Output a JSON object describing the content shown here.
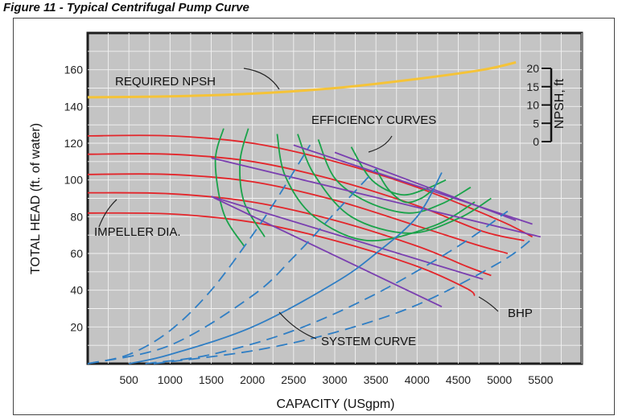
{
  "figure_title": "Figure 11 - Typical Centrifugal Pump Curve",
  "colors": {
    "plot_bg": "#c4c4c4",
    "grid": "#f2f2f2",
    "npsh": "#f5c338",
    "head": "#e3262b",
    "efficiency": "#1aa34a",
    "bhp": "#7a3fb0",
    "system": "#2f7ec4"
  },
  "chart_data": {
    "type": "line",
    "xlabel": "CAPACITY (USgpm)",
    "ylabel": "TOTAL HEAD (ft. of water)",
    "y2label": "NPSH, ft",
    "xlim": [
      0,
      6000
    ],
    "ylim": [
      0,
      180
    ],
    "y2lim": [
      0,
      20
    ],
    "x_ticks": [
      500,
      1000,
      1500,
      2000,
      2500,
      3000,
      3500,
      4000,
      4500,
      5000,
      5500
    ],
    "y_ticks": [
      20,
      40,
      60,
      80,
      100,
      120,
      140,
      160
    ],
    "y2_ticks": [
      0,
      5,
      10,
      15,
      20
    ],
    "grid": true,
    "annotations": {
      "npsh": "REQUIRED NPSH",
      "efficiency": "EFFICIENCY CURVES",
      "impeller": "IMPELLER DIA.",
      "bhp": "BHP",
      "system": "SYSTEM CURVE"
    },
    "required_npsh": {
      "x": [
        0,
        1000,
        2000,
        3000,
        4000,
        4800,
        5200
      ],
      "y": [
        145,
        145.5,
        147,
        150,
        155,
        160,
        164
      ]
    },
    "head_curves": [
      {
        "x": [
          0,
          1000,
          2000,
          3000,
          4000,
          5000,
          5400
        ],
        "y": [
          124,
          124,
          120,
          110,
          96,
          78,
          69
        ]
      },
      {
        "x": [
          0,
          1000,
          2000,
          3000,
          4000,
          4800,
          5300
        ],
        "y": [
          114,
          114,
          110,
          100,
          86,
          72,
          67
        ]
      },
      {
        "x": [
          0,
          1000,
          2000,
          3000,
          4000,
          4700,
          5100
        ],
        "y": [
          103,
          103,
          99,
          89,
          75,
          65,
          60
        ]
      },
      {
        "x": [
          0,
          1000,
          2000,
          3000,
          4000,
          4600,
          4900
        ],
        "y": [
          93,
          92.5,
          88,
          78,
          64,
          53,
          48
        ]
      },
      {
        "x": [
          0,
          1000,
          2000,
          3000,
          4000,
          4600,
          4700
        ],
        "y": [
          82,
          81.5,
          77,
          67,
          53,
          41,
          37
        ]
      }
    ],
    "efficiency_curves": [
      {
        "x": [
          1650,
          1550,
          1650,
          1900
        ],
        "y": [
          128,
          110,
          82,
          64
        ]
      },
      {
        "x": [
          1950,
          1850,
          1900,
          2150
        ],
        "y": [
          128,
          110,
          88,
          69
        ]
      },
      {
        "x": [
          2300,
          2400,
          2750,
          3400,
          4200,
          4700
        ],
        "y": [
          125,
          102,
          80,
          67,
          75,
          88
        ]
      },
      {
        "x": [
          2550,
          2750,
          3200,
          3900,
          4500,
          4900
        ],
        "y": [
          125,
          103,
          80,
          71,
          79,
          90
        ]
      },
      {
        "x": [
          2800,
          3000,
          3400,
          3900,
          4300,
          4650
        ],
        "y": [
          122,
          101,
          88,
          82,
          87,
          96
        ]
      },
      {
        "x": [
          3200,
          3450,
          3800,
          4100,
          4350
        ],
        "y": [
          118,
          100,
          92,
          95,
          100
        ]
      },
      {
        "x": [
          3500,
          3650,
          3850,
          4050,
          4200
        ],
        "y": [
          106,
          95,
          88,
          90,
          95
        ]
      }
    ],
    "bhp_lines": [
      {
        "x": [
          1500,
          5500
        ],
        "y": [
          112,
          69
        ]
      },
      {
        "x": [
          2500,
          5400
        ],
        "y": [
          119,
          76
        ]
      },
      {
        "x": [
          3000,
          5200
        ],
        "y": [
          115,
          78
        ]
      },
      {
        "x": [
          1500,
          4800
        ],
        "y": [
          91,
          46
        ]
      },
      {
        "x": [
          1500,
          4300
        ],
        "y": [
          91,
          31
        ]
      }
    ],
    "system_curves": [
      {
        "x": [
          0,
          500,
          1000,
          1500,
          2000,
          2300,
          2700
        ],
        "y": [
          0,
          5,
          18,
          40,
          70,
          90,
          119
        ],
        "dashed": true
      },
      {
        "x": [
          0,
          1000,
          2000,
          2500,
          3000,
          3500
        ],
        "y": [
          0,
          10,
          37,
          58,
          82,
          106
        ],
        "dashed": true
      },
      {
        "x": [
          500,
          1000,
          2000,
          3000,
          3500,
          4000,
          4300
        ],
        "y": [
          0,
          5,
          20,
          44,
          60,
          80,
          104
        ],
        "dashed": false
      },
      {
        "x": [
          700,
          1500,
          2500,
          3500,
          4500,
          5100
        ],
        "y": [
          0,
          5,
          18,
          38,
          64,
          83
        ],
        "dashed": true
      },
      {
        "x": [
          800,
          2000,
          3000,
          4000,
          5000,
          5400
        ],
        "y": [
          0,
          7,
          17,
          32,
          55,
          68
        ],
        "dashed": true
      }
    ]
  }
}
